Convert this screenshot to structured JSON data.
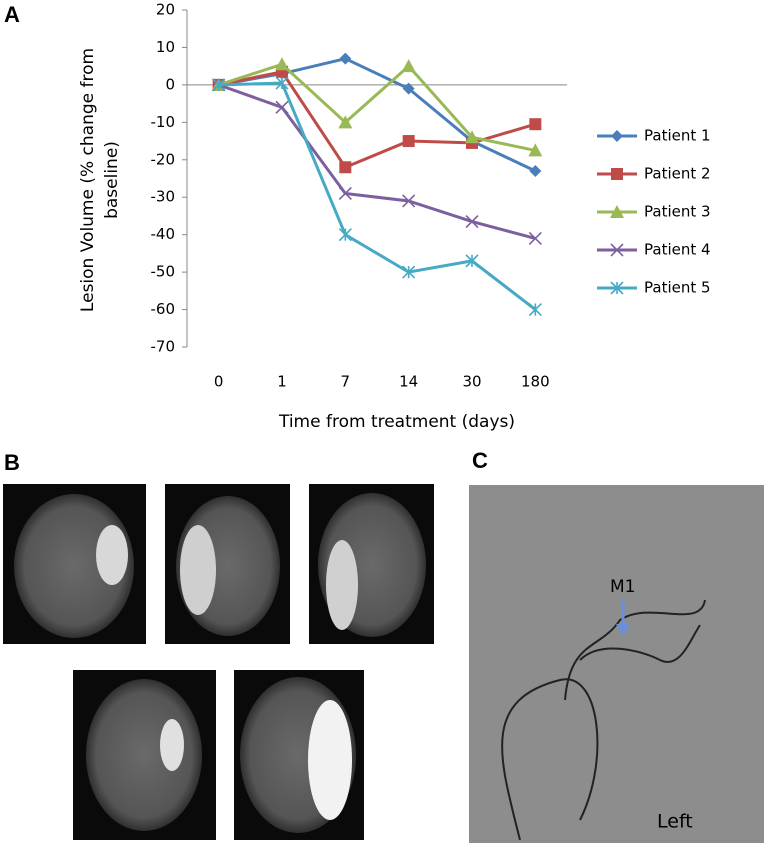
{
  "chart_data": {
    "type": "line",
    "categories": [
      "0",
      "1",
      "7",
      "14",
      "30",
      "180"
    ],
    "series": [
      {
        "name": "Patient 1",
        "color": "#4a7ebb",
        "marker": "diamond",
        "values": [
          0,
          3,
          7,
          -1,
          -15,
          -23
        ]
      },
      {
        "name": "Patient 2",
        "color": "#be4b48",
        "marker": "square",
        "values": [
          0,
          3.5,
          -22,
          -15,
          -15.5,
          -10.5
        ]
      },
      {
        "name": "Patient 3",
        "color": "#98b954",
        "marker": "triangle",
        "values": [
          0,
          5.5,
          -10,
          5,
          -14,
          -17.5
        ]
      },
      {
        "name": "Patient 4",
        "color": "#7d5fa0",
        "marker": "x",
        "values": [
          0,
          -6,
          -29,
          -31,
          -36.5,
          -41
        ]
      },
      {
        "name": "Patient 5",
        "color": "#46aac5",
        "marker": "star",
        "values": [
          0,
          0.5,
          -40,
          -50,
          -47,
          -60
        ]
      }
    ],
    "ylim": [
      -70,
      20
    ],
    "yticks": [
      -70,
      -60,
      -50,
      -40,
      -30,
      -20,
      -10,
      0,
      10,
      20
    ],
    "x_label": "Time from treatment (days)",
    "y_label": "Lesion Volume (% change from baseline)",
    "legend": "right"
  },
  "panel_labels": [
    "A",
    "B",
    "C"
  ],
  "image_labels": [
    "M1",
    "Left"
  ]
}
